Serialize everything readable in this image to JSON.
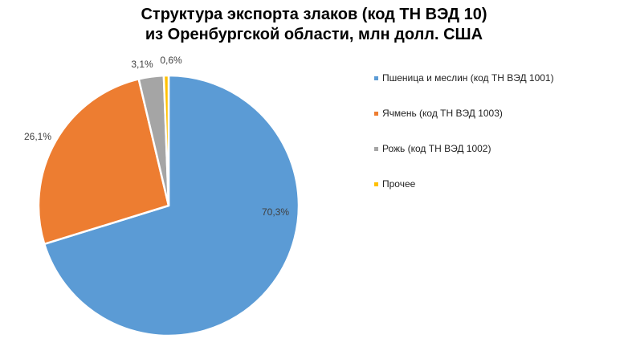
{
  "chart_data": {
    "type": "pie",
    "title_line1": "Структура экспорта злаков (код ТН ВЭД 10)",
    "title_line2": "из Оренбургской области, млн долл. США",
    "legend_position": "right",
    "slices": [
      {
        "name": "Пшеница и меслин (код ТН ВЭД 1001)",
        "value": 70.3,
        "label": "70,3%",
        "color": "#5B9BD5"
      },
      {
        "name": "Ячмень (код ТН ВЭД 1003)",
        "value": 26.1,
        "label": "26,1%",
        "color": "#ED7D31"
      },
      {
        "name": " Рожь (код ТН ВЭД 1002)",
        "value": 3.1,
        "label": "3,1%",
        "color": "#A5A5A5"
      },
      {
        "name": "Прочее",
        "value": 0.6,
        "label": "0,6%",
        "color": "#FFC000"
      }
    ]
  }
}
